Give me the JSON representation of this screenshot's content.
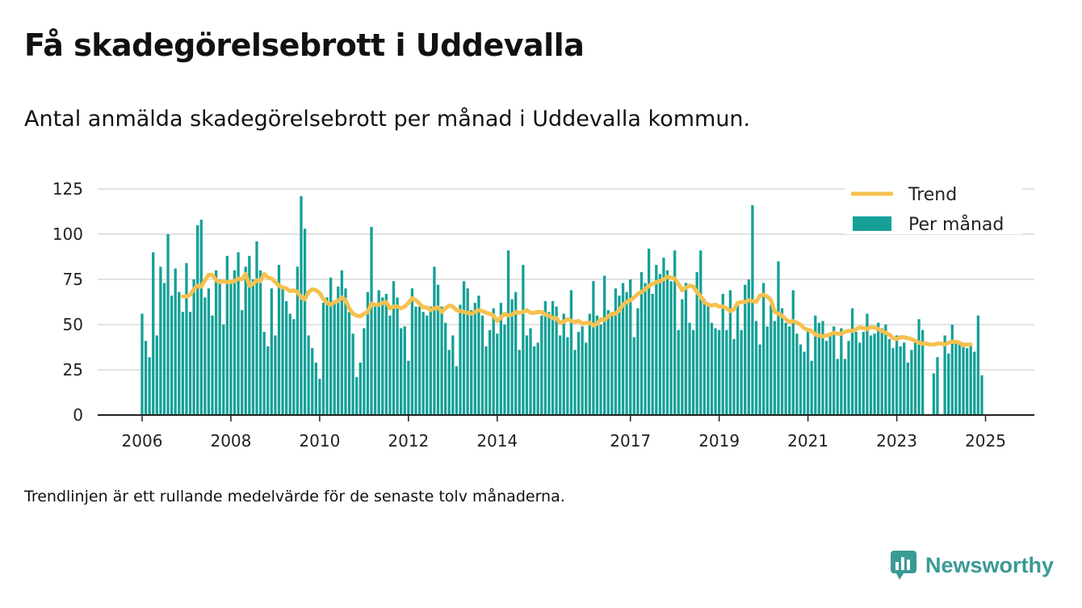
{
  "title": "Få skadegörelsebrott i Uddevalla",
  "subtitle": "Antal anmälda skadegörelsebrott per månad i Uddevalla kommun.",
  "footnote": "Trendlinjen är ett rullande medelvärde för de senaste tolv månaderna.",
  "brand": "Newsworthy",
  "colors": {
    "bar": "#14a097",
    "trend": "#f6c14f",
    "grid": "#d9d9d9",
    "axis": "#222222",
    "brand": "#3a9a94"
  },
  "chart_data": {
    "type": "bar",
    "title": "",
    "xlabel": "",
    "ylabel": "",
    "ylim": [
      0,
      125
    ],
    "yticks": [
      0,
      25,
      50,
      75,
      100,
      125
    ],
    "xticks": [
      2006,
      2008,
      2010,
      2012,
      2014,
      2017,
      2019,
      2021,
      2023,
      2025
    ],
    "xlim": [
      2005.0,
      2026.1
    ],
    "x_start": "2006-01",
    "legend_position": "top-right",
    "grid": true,
    "series": [
      {
        "name": "Per månad",
        "type": "bar",
        "values": [
          56,
          41,
          32,
          90,
          44,
          82,
          73,
          100,
          66,
          81,
          68,
          57,
          84,
          57,
          75,
          105,
          108,
          65,
          70,
          55,
          80,
          75,
          50,
          88,
          74,
          80,
          90,
          58,
          82,
          88,
          75,
          96,
          80,
          46,
          38,
          70,
          44,
          83,
          70,
          63,
          56,
          53,
          82,
          121,
          103,
          44,
          37,
          29,
          20,
          62,
          65,
          76,
          62,
          71,
          80,
          70,
          57,
          45,
          21,
          29,
          48,
          68,
          104,
          60,
          69,
          65,
          67,
          55,
          74,
          65,
          48,
          49,
          30,
          70,
          60,
          60,
          57,
          55,
          60,
          82,
          72,
          60,
          51,
          36,
          44,
          27,
          61,
          74,
          70,
          58,
          62,
          66,
          55,
          38,
          47,
          59,
          45,
          62,
          50,
          91,
          64,
          68,
          36,
          83,
          44,
          48,
          38,
          40,
          55,
          63,
          57,
          63,
          60,
          44,
          56,
          43,
          69,
          36,
          46,
          49,
          40,
          56,
          74,
          55,
          50,
          77,
          58,
          55,
          70,
          66,
          73,
          68,
          75,
          43,
          59,
          79,
          73,
          92,
          67,
          83,
          78,
          87,
          80,
          74,
          91,
          47,
          64,
          73,
          51,
          47,
          79,
          91,
          64,
          61,
          51,
          48,
          47,
          67,
          47,
          69,
          42,
          62,
          47,
          72,
          75,
          116,
          52,
          39,
          73,
          49,
          61,
          52,
          85,
          59,
          51,
          49,
          69,
          45,
          39,
          35,
          48,
          30,
          55,
          51,
          52,
          41,
          44,
          49,
          31,
          48,
          31,
          41,
          59,
          46,
          40,
          46,
          56,
          44,
          45,
          51,
          48,
          50,
          42,
          37,
          44,
          38,
          40,
          29,
          36,
          40,
          53,
          47,
          null,
          null,
          23,
          32,
          null,
          44,
          34,
          50,
          40,
          40,
          40,
          37,
          38,
          35,
          55,
          22
        ]
      },
      {
        "name": "Trend",
        "type": "line",
        "start_index": 11,
        "values": [
          65.5,
          65.5,
          66.5,
          69.5,
          71.5,
          71.0,
          74.5,
          77.5,
          77.5,
          74.5,
          73.5,
          74.0,
          73.5,
          73.5,
          74.0,
          75.5,
          75.0,
          78.0,
          71.5,
          72.5,
          74.5,
          74.0,
          78.0,
          76.0,
          75.5,
          73.5,
          71.5,
          70.5,
          70.0,
          68.5,
          69.0,
          68.0,
          65.0,
          64.0,
          68.0,
          69.5,
          69.0,
          67.5,
          64.0,
          62.0,
          61.0,
          62.5,
          63.0,
          65.0,
          63.5,
          59.0,
          56.0,
          55.0,
          54.5,
          56.0,
          57.0,
          61.5,
          61.0,
          61.0,
          62.0,
          62.5,
          59.0,
          60.0,
          60.0,
          59.0,
          60.0,
          62.0,
          64.5,
          63.5,
          61.5,
          59.5,
          59.5,
          58.0,
          59.0,
          59.5,
          57.0,
          59.0,
          60.5,
          60.0,
          58.0,
          57.5,
          57.0,
          56.5,
          56.0,
          57.0,
          58.0,
          57.5,
          56.5,
          56.0,
          55.0,
          52.0,
          54.0,
          56.0,
          55.0,
          55.5,
          57.0,
          56.5,
          57.0,
          58.0,
          56.5,
          56.5,
          57.0,
          57.0,
          55.5,
          55.0,
          53.5,
          53.5,
          51.0,
          51.5,
          53.0,
          52.0,
          51.5,
          52.0,
          50.5,
          51.0,
          51.0,
          49.5,
          50.5,
          53.0,
          52.5,
          54.5,
          56.0,
          56.0,
          58.0,
          61.0,
          62.5,
          63.5,
          65.0,
          67.0,
          68.0,
          69.5,
          71.5,
          72.5,
          73.5,
          74.0,
          75.0,
          76.5,
          76.0,
          75.5,
          72.5,
          69.0,
          70.5,
          71.5,
          71.0,
          68.0,
          65.5,
          62.5,
          61.0,
          60.5,
          61.0,
          60.0,
          60.0,
          59.0,
          57.5,
          58.5,
          62.0,
          62.5,
          62.5,
          63.5,
          63.0,
          62.5,
          66.0,
          66.5,
          65.5,
          63.5,
          57.0,
          56.0,
          55.0,
          53.0,
          51.5,
          52.0,
          51.0,
          50.0,
          48.0,
          47.0,
          46.5,
          44.5,
          44.0,
          43.5,
          44.0,
          44.5,
          45.5,
          45.0,
          45.0,
          46.0,
          46.5,
          46.5,
          47.5,
          48.5,
          48.0,
          47.5,
          48.5,
          48.5,
          47.5,
          46.5,
          45.5,
          44.5,
          42.5,
          42.0,
          43.0,
          43.0,
          42.5,
          42.0,
          41.0,
          40.0,
          39.5,
          39.5,
          39.0,
          39.0,
          39.5,
          39.5,
          39.0,
          40.0,
          40.5,
          40.5,
          40.0,
          38.5,
          39.0,
          39.0
        ]
      }
    ]
  }
}
